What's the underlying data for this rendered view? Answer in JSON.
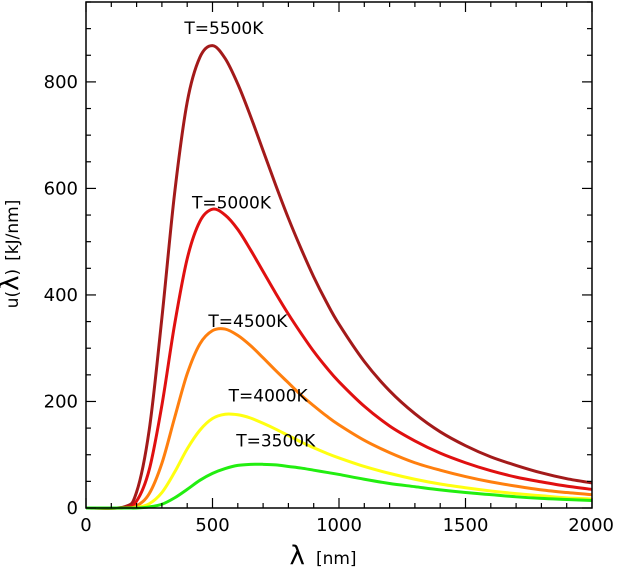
{
  "chart_data": {
    "type": "line",
    "xlabel_symbol": "λ",
    "xlabel_unit": "[nm]",
    "ylabel_prefix": "u(",
    "ylabel_symbol": "λ",
    "ylabel_suffix": ")",
    "ylabel_unit": "[kJ/nm]",
    "xlim": [
      0,
      2000
    ],
    "ylim": [
      0,
      950
    ],
    "xticks": [
      0,
      500,
      1000,
      1500,
      2000
    ],
    "yticks": [
      0,
      200,
      400,
      600,
      800
    ],
    "x_minor_step": 100,
    "y_minor_step": 50,
    "grid": false,
    "legend": "none",
    "x": [
      0,
      150,
      200,
      250,
      300,
      350,
      400,
      450,
      500,
      550,
      600,
      650,
      700,
      750,
      800,
      850,
      900,
      950,
      1000,
      1100,
      1200,
      1300,
      1400,
      1500,
      1600,
      1700,
      1800,
      1900,
      2000
    ],
    "series": [
      {
        "color": "#a31a1a",
        "values": [
          0,
          2,
          30,
          147,
          357,
          590,
          762,
          846,
          868,
          844,
          796,
          736,
          671,
          606,
          544,
          487,
          434,
          387,
          345,
          275,
          220,
          177,
          143,
          117,
          96,
          80,
          66,
          55,
          47
        ]
      },
      {
        "color": "#e01010",
        "values": [
          0,
          1,
          13,
          72,
          193,
          344,
          468,
          538,
          561,
          550,
          523,
          485,
          444,
          403,
          364,
          328,
          294,
          264,
          237,
          191,
          154,
          126,
          103,
          85,
          70,
          58,
          49,
          41,
          35
        ]
      },
      {
        "color": "#ff7f0e",
        "values": [
          0,
          0,
          4,
          27,
          84,
          169,
          252,
          308,
          333,
          336,
          324,
          305,
          282,
          258,
          235,
          212,
          192,
          173,
          156,
          127,
          104,
          85,
          71,
          59,
          49,
          41,
          34,
          29,
          25
        ]
      },
      {
        "color": "#ffff10",
        "values": [
          0,
          0,
          1,
          8,
          29,
          67,
          111,
          146,
          168,
          176,
          175,
          169,
          159,
          148,
          136,
          124,
          113,
          103,
          94,
          78,
          65,
          54,
          45,
          38,
          32,
          27,
          23,
          19,
          17
        ]
      },
      {
        "color": "#22ee10",
        "values": [
          0,
          0,
          0,
          2,
          7,
          19,
          35,
          52,
          65,
          74,
          80,
          82,
          82,
          81,
          78,
          75,
          71,
          67,
          63,
          54,
          46,
          40,
          34,
          29,
          25,
          21,
          18,
          16,
          14
        ]
      }
    ],
    "annotations": [
      {
        "text": "T=5500K",
        "x": 545,
        "y": 890
      },
      {
        "text": "T=5000K",
        "x": 575,
        "y": 562
      },
      {
        "text": "T=4500K",
        "x": 640,
        "y": 340
      },
      {
        "text": "T=4000K",
        "x": 720,
        "y": 200
      },
      {
        "text": "T=3500K",
        "x": 750,
        "y": 115
      }
    ],
    "tick_labels_x": [
      "0",
      "500",
      "1000",
      "1500",
      "2000"
    ],
    "tick_labels_y": [
      "0",
      "200",
      "400",
      "600",
      "800"
    ]
  }
}
